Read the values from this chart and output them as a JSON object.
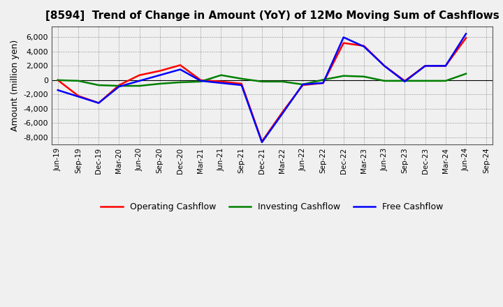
{
  "title": "[8594]  Trend of Change in Amount (YoY) of 12Mo Moving Sum of Cashflows",
  "ylabel": "Amount (million yen)",
  "x_labels": [
    "Jun-19",
    "Sep-19",
    "Dec-19",
    "Mar-20",
    "Jun-20",
    "Sep-20",
    "Dec-20",
    "Mar-21",
    "Jun-21",
    "Sep-21",
    "Dec-21",
    "Mar-22",
    "Jun-22",
    "Sep-22",
    "Dec-22",
    "Mar-23",
    "Jun-23",
    "Sep-23",
    "Dec-23",
    "Mar-24",
    "Jun-24",
    "Sep-24"
  ],
  "operating": [
    0,
    -2200,
    -3200,
    -700,
    700,
    1300,
    2100,
    0,
    -200,
    -500,
    -8600,
    -4500,
    -700,
    -400,
    5200,
    4800,
    2000,
    -100,
    2000,
    2000,
    5900,
    null
  ],
  "investing": [
    0,
    -100,
    -700,
    -800,
    -800,
    -500,
    -300,
    -200,
    700,
    200,
    -200,
    -200,
    -600,
    50,
    600,
    500,
    -100,
    -100,
    -100,
    -100,
    900,
    null
  ],
  "free": [
    -1400,
    -2300,
    -3200,
    -900,
    -100,
    700,
    1500,
    -100,
    -400,
    -700,
    -8700,
    -4700,
    -600,
    -400,
    6000,
    4700,
    2000,
    -200,
    2000,
    2000,
    6500,
    null
  ],
  "operating_color": "#ff0000",
  "investing_color": "#008000",
  "free_color": "#0000ff",
  "bg_color": "#f0f0f0",
  "plot_bg_color": "#f0f0f0",
  "grid_color": "#888888",
  "ylim": [
    -9000,
    7500
  ],
  "yticks": [
    -8000,
    -6000,
    -4000,
    -2000,
    0,
    2000,
    4000,
    6000
  ],
  "linewidth": 1.8
}
